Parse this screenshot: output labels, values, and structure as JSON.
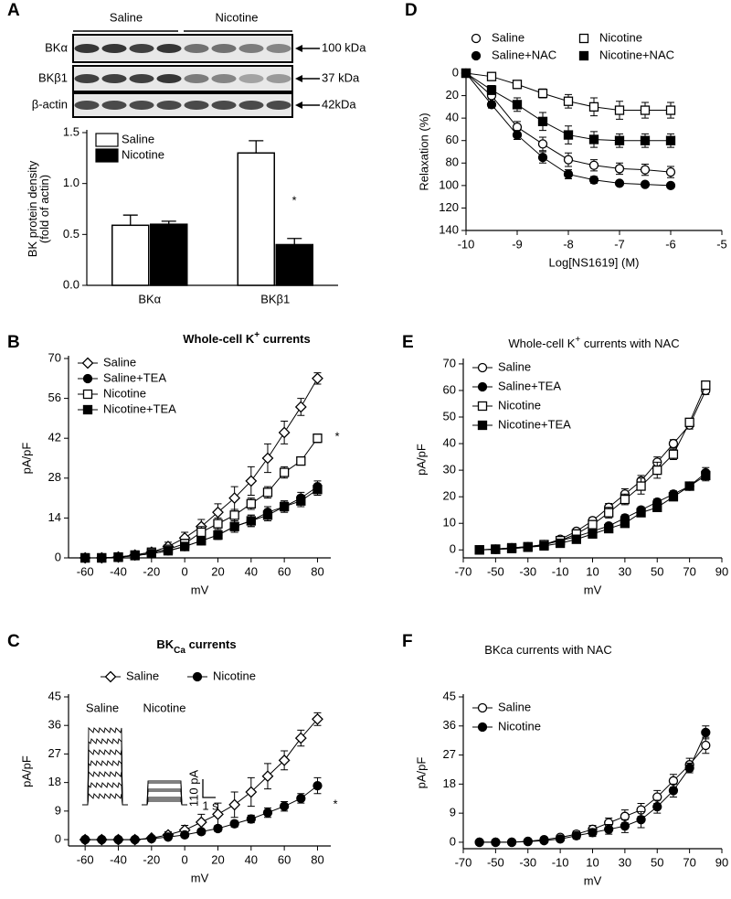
{
  "blot": {
    "groups": [
      "Saline",
      "Nicotine"
    ],
    "rows": [
      "BKα",
      "BKβ1",
      "β-actin"
    ],
    "sizes": [
      "100 kDa",
      "37 kDa",
      "42kDa"
    ]
  },
  "chart_data": [
    {
      "type": "bar",
      "panel": "A",
      "ylabel": [
        "BK protein density",
        "(fold of actin)"
      ],
      "categories": [
        "BKα",
        "BKβ1"
      ],
      "series": [
        {
          "name": "Saline",
          "color": "#ffffff",
          "values": [
            0.59,
            1.3
          ],
          "errors": [
            0.1,
            0.12
          ]
        },
        {
          "name": "Nicotine",
          "color": "#000000",
          "values": [
            0.6,
            0.4
          ],
          "errors": [
            0.03,
            0.06
          ]
        }
      ],
      "ylim": [
        0,
        1.5
      ],
      "yticks": [
        {
          "value": 0,
          "label": "0.0"
        },
        0.5,
        {
          "value": 1,
          "label": "1.0"
        },
        1.5
      ],
      "annotation": "*",
      "legend": "upper left"
    },
    {
      "type": "line",
      "panel": "D",
      "xlabel": "Log[NS1619] (M)",
      "ylabel": "Relaxation (%)",
      "x": [
        -10,
        -9.5,
        -9,
        -8.5,
        -8,
        -7.5,
        -7,
        -6.5,
        -6
      ],
      "series": [
        {
          "name": "Saline",
          "color": "#000000",
          "marker": "circle-open",
          "values": [
            0,
            20,
            48,
            63,
            77,
            82,
            85,
            86,
            88
          ],
          "errors": [
            0,
            3,
            5,
            6,
            6,
            5,
            5,
            5,
            5
          ]
        },
        {
          "name": "Nicotine",
          "color": "#000000",
          "marker": "square-open",
          "values": [
            0,
            3,
            10,
            18,
            25,
            30,
            33,
            33,
            33
          ],
          "errors": [
            0,
            2,
            3,
            4,
            6,
            8,
            8,
            7,
            7
          ]
        },
        {
          "name": "Saline+NAC",
          "color": "#000000",
          "marker": "circle",
          "values": [
            0,
            28,
            55,
            75,
            90,
            95,
            98,
            99,
            100
          ],
          "errors": [
            0,
            3,
            4,
            5,
            4,
            3,
            2,
            2,
            2
          ]
        },
        {
          "name": "Nicotine+NAC",
          "color": "#000000",
          "marker": "square",
          "values": [
            0,
            15,
            28,
            43,
            55,
            59,
            60,
            60,
            60
          ],
          "errors": [
            0,
            4,
            6,
            8,
            8,
            7,
            6,
            6,
            6
          ]
        }
      ],
      "xlim": [
        -10,
        -5
      ],
      "xticks": [
        -10,
        -9,
        -8,
        -7,
        -6,
        -5
      ],
      "ylim": [
        140,
        0
      ],
      "yticks": [
        0,
        20,
        40,
        60,
        80,
        100,
        120,
        140
      ],
      "legend": "top"
    },
    {
      "type": "line",
      "panel": "B",
      "title_parts": [
        {
          "text": "Whole-cell K"
        },
        {
          "text": "+",
          "sup": true
        },
        {
          "text": " currents"
        }
      ],
      "title_bold": true,
      "xlabel": "mV",
      "ylabel": "pA/pF",
      "x": [
        -60,
        -50,
        -40,
        -30,
        -20,
        -10,
        0,
        10,
        20,
        30,
        40,
        50,
        60,
        70,
        80
      ],
      "series": [
        {
          "name": "Saline",
          "color": "#000000",
          "marker": "diamond-open",
          "values": [
            0,
            0,
            0.3,
            1,
            2,
            4,
            7,
            11,
            16,
            21,
            27,
            35,
            44,
            53,
            63
          ],
          "errors": [
            0,
            0,
            0.3,
            0.5,
            1,
            1.5,
            2,
            2.5,
            3,
            4,
            5,
            5,
            4,
            3,
            2
          ]
        },
        {
          "name": "Saline+TEA",
          "color": "#000000",
          "marker": "circle",
          "values": [
            0,
            0,
            0.2,
            0.8,
            1.5,
            2.5,
            4,
            6,
            8,
            11,
            13,
            16,
            18,
            21,
            25
          ],
          "errors": [
            0,
            0,
            0.2,
            0.3,
            0.5,
            0.8,
            1,
            1.2,
            1.5,
            2,
            2,
            2,
            2,
            2,
            2
          ]
        },
        {
          "name": "Nicotine",
          "color": "#000000",
          "marker": "square-open",
          "values": [
            0,
            0,
            0.3,
            1,
            2,
            3,
            5,
            9,
            12,
            15,
            19,
            23,
            30,
            34,
            42
          ],
          "errors": [
            0,
            0,
            0.2,
            0.4,
            0.8,
            1,
            1.5,
            2,
            2,
            2,
            2,
            2,
            2,
            1,
            1.5
          ]
        },
        {
          "name": "Nicotine+TEA",
          "color": "#000000",
          "marker": "square",
          "values": [
            0,
            0,
            0.2,
            0.8,
            1.5,
            2.5,
            4,
            6,
            8,
            11,
            13,
            15,
            18,
            20,
            24
          ],
          "errors": [
            0,
            0,
            0.2,
            0.3,
            0.5,
            0.8,
            1,
            1.2,
            1.5,
            2,
            2,
            2,
            2,
            2,
            2
          ]
        }
      ],
      "xlim": [
        -70,
        88
      ],
      "xticks": [
        -60,
        -40,
        -20,
        0,
        20,
        40,
        60,
        80
      ],
      "ylim": [
        0,
        70
      ],
      "yticks": [
        0,
        14,
        28,
        42,
        56,
        70
      ],
      "annotation": "*",
      "legend": "upper left"
    },
    {
      "type": "line",
      "panel": "E",
      "title_parts": [
        {
          "text": "Whole-cell K"
        },
        {
          "text": "+",
          "sup": true
        },
        {
          "text": " currents with NAC"
        }
      ],
      "title_bold": false,
      "xlabel": "mV",
      "ylabel": "pA/pF",
      "x": [
        -60,
        -50,
        -40,
        -30,
        -20,
        -10,
        0,
        10,
        20,
        30,
        40,
        50,
        60,
        70,
        80
      ],
      "series": [
        {
          "name": "Saline",
          "color": "#000000",
          "marker": "circle-open",
          "values": [
            0,
            0.3,
            0.8,
            1.2,
            2,
            4,
            7,
            11,
            16,
            21,
            26,
            33,
            40,
            47,
            60
          ],
          "errors": [
            0,
            0,
            0.2,
            0.3,
            0.5,
            0.8,
            1,
            1.2,
            1.5,
            2,
            2,
            2,
            1.5,
            1.5,
            1.5
          ]
        },
        {
          "name": "Saline+TEA",
          "color": "#000000",
          "marker": "circle",
          "values": [
            0,
            0.2,
            0.5,
            1,
            2,
            3.5,
            5,
            7,
            9,
            12,
            15,
            18,
            21,
            24,
            29
          ],
          "errors": [
            0,
            0,
            0.2,
            0.3,
            0.5,
            0.5,
            0.8,
            1,
            1,
            1.2,
            1.2,
            1.2,
            1.2,
            1.5,
            2
          ]
        },
        {
          "name": "Nicotine",
          "color": "#000000",
          "marker": "square-open",
          "values": [
            0,
            0.3,
            0.8,
            1.2,
            2,
            3.5,
            6,
            9.5,
            14,
            19,
            24,
            30,
            36,
            48,
            62
          ],
          "errors": [
            0,
            0,
            0.2,
            0.3,
            0.5,
            0.8,
            1,
            1.5,
            2,
            2,
            3,
            3,
            2,
            1.5,
            1.5
          ]
        },
        {
          "name": "Nicotine+TEA",
          "color": "#000000",
          "marker": "square",
          "values": [
            0,
            0.2,
            0.5,
            1,
            1.5,
            2.5,
            4,
            6,
            8,
            10,
            14,
            16,
            20,
            24,
            28
          ],
          "errors": [
            0,
            0,
            0.2,
            0.3,
            0.5,
            0.5,
            0.8,
            1,
            1,
            1.2,
            1.2,
            1.2,
            1.2,
            1.5,
            2
          ]
        }
      ],
      "xlim": [
        -70,
        90
      ],
      "xticks": [
        -70,
        -50,
        -30,
        -10,
        10,
        30,
        50,
        70,
        90
      ],
      "ylim": [
        -3,
        71
      ],
      "yticks": [
        0,
        10,
        20,
        30,
        40,
        50,
        60,
        70
      ],
      "legend": "upper left"
    },
    {
      "type": "line",
      "panel": "C",
      "title_parts": [
        {
          "text": "BK"
        },
        {
          "text": "Ca",
          "sub": true
        },
        {
          "text": " currents"
        }
      ],
      "title_bold": true,
      "xlabel": "mV",
      "ylabel": "pA/pF",
      "x": [
        -60,
        -50,
        -40,
        -30,
        -20,
        -10,
        0,
        10,
        20,
        30,
        40,
        50,
        60,
        70,
        80
      ],
      "series": [
        {
          "name": "Saline",
          "color": "#000000",
          "marker": "diamond-open",
          "values": [
            0,
            0,
            0,
            0,
            0.5,
            1.5,
            3,
            5.5,
            8,
            11,
            15,
            20,
            25,
            32,
            38
          ],
          "errors": [
            0,
            0,
            0,
            0,
            0.3,
            1,
            1.5,
            2.5,
            3.5,
            4,
            4.5,
            4,
            3,
            2.5,
            2
          ]
        },
        {
          "name": "Nicotine",
          "color": "#000000",
          "marker": "circle",
          "values": [
            0,
            0,
            0,
            0,
            0.3,
            0.8,
            1.5,
            2.5,
            3.5,
            5,
            6.5,
            8.5,
            10.5,
            13,
            17
          ],
          "errors": [
            0,
            0,
            0,
            0,
            0.2,
            0.3,
            0.5,
            0.8,
            1,
            1,
            1.2,
            1.5,
            1.5,
            1.5,
            2.5
          ]
        }
      ],
      "xlim": [
        -70,
        88
      ],
      "xticks": [
        -60,
        -40,
        -20,
        0,
        20,
        40,
        60,
        80
      ],
      "ylim": [
        -2,
        45
      ],
      "yticks": [
        0,
        9,
        18,
        27,
        36,
        45
      ],
      "annotation": "*",
      "legend": "top",
      "inset": {
        "labels": [
          "Saline",
          "Nicotine"
        ],
        "scale_y": "110 pA",
        "scale_x": "1 s"
      }
    },
    {
      "type": "line",
      "panel": "F",
      "title_parts": [
        {
          "text": "BKca currents with NAC"
        }
      ],
      "title_bold": false,
      "xlabel": "mV",
      "ylabel": "pA/pF",
      "x": [
        -60,
        -50,
        -40,
        -30,
        -20,
        -10,
        0,
        10,
        20,
        30,
        40,
        50,
        60,
        70,
        80
      ],
      "series": [
        {
          "name": "Saline",
          "color": "#000000",
          "marker": "circle-open",
          "values": [
            0,
            0,
            0,
            0.3,
            0.8,
            1.5,
            2.5,
            4,
            6,
            8,
            10,
            14,
            19,
            24,
            30
          ],
          "errors": [
            0,
            0,
            0,
            0,
            0.3,
            0.5,
            1,
            1.2,
            1.5,
            2,
            2,
            2,
            2,
            2,
            2.5
          ]
        },
        {
          "name": "Nicotine",
          "color": "#000000",
          "marker": "circle",
          "values": [
            0,
            0,
            0,
            0.2,
            0.5,
            1,
            2,
            3,
            4,
            5,
            7,
            11,
            16,
            23,
            34
          ],
          "errors": [
            0,
            0,
            0,
            0,
            0.3,
            0.5,
            1,
            1.2,
            1.5,
            2,
            2.5,
            2,
            2,
            1.5,
            2
          ]
        }
      ],
      "xlim": [
        -70,
        90
      ],
      "xticks": [
        -70,
        -50,
        -30,
        -10,
        10,
        30,
        50,
        70,
        90
      ],
      "ylim": [
        -2,
        45
      ],
      "yticks": [
        0,
        9,
        18,
        27,
        36,
        45
      ],
      "legend": "upper left"
    }
  ]
}
